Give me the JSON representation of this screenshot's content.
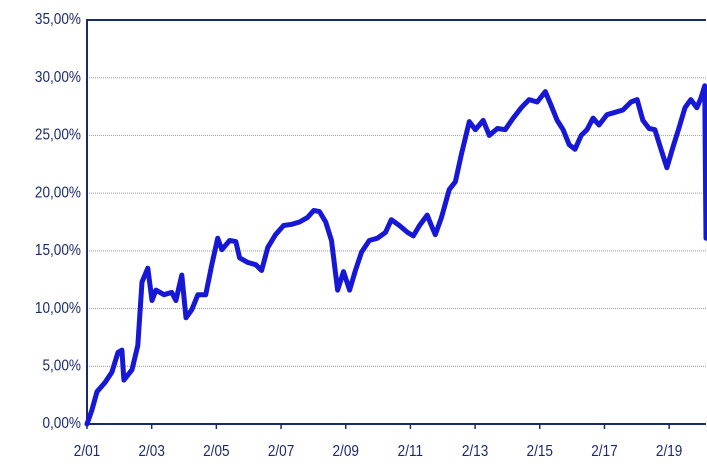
{
  "chart_data": {
    "type": "line",
    "x": [
      2001.0,
      2001.15,
      2001.31,
      2001.56,
      2001.77,
      2001.96,
      2002.08,
      2002.14,
      2002.39,
      2002.57,
      2002.7,
      2002.88,
      2003.01,
      2003.13,
      2003.38,
      2003.62,
      2003.75,
      2003.93,
      2004.06,
      2004.24,
      2004.43,
      2004.67,
      2004.86,
      2005.04,
      2005.17,
      2005.41,
      2005.6,
      2005.72,
      2005.97,
      2006.22,
      2006.4,
      2006.59,
      2006.83,
      2007.08,
      2007.33,
      2007.57,
      2007.82,
      2008.01,
      2008.19,
      2008.38,
      2008.56,
      2008.75,
      2008.93,
      2009.12,
      2009.3,
      2009.49,
      2009.73,
      2009.98,
      2010.23,
      2010.41,
      2010.66,
      2010.91,
      2011.09,
      2011.28,
      2011.52,
      2011.65,
      2011.77,
      2011.96,
      2012.2,
      2012.39,
      2012.57,
      2012.82,
      2013.01,
      2013.25,
      2013.44,
      2013.69,
      2013.93,
      2014.18,
      2014.43,
      2014.67,
      2014.92,
      2015.17,
      2015.35,
      2015.54,
      2015.72,
      2015.91,
      2016.09,
      2016.28,
      2016.46,
      2016.65,
      2016.83,
      2017.08,
      2017.33,
      2017.57,
      2017.82,
      2018.01,
      2018.19,
      2018.38,
      2018.56,
      2018.75,
      2018.93,
      2019.12,
      2019.3,
      2019.49,
      2019.67,
      2019.86,
      2019.98,
      2020.1,
      2020.14
    ],
    "values": [
      0,
      1.2,
      2.8,
      3.6,
      4.5,
      6.2,
      6.4,
      3.8,
      4.7,
      6.8,
      12.3,
      13.5,
      10.7,
      11.6,
      11.2,
      11.4,
      10.7,
      12.9,
      9.2,
      9.9,
      11.2,
      11.2,
      13.8,
      16.1,
      15.1,
      15.9,
      15.8,
      14.4,
      14.0,
      13.8,
      13.3,
      15.3,
      16.4,
      17.2,
      17.3,
      17.5,
      17.9,
      18.5,
      18.4,
      17.5,
      15.9,
      11.6,
      13.2,
      11.6,
      13.3,
      14.9,
      15.9,
      16.1,
      16.6,
      17.7,
      17.2,
      16.6,
      16.3,
      17.2,
      18.1,
      17.2,
      16.4,
      17.9,
      20.3,
      21.0,
      23.3,
      26.2,
      25.5,
      26.3,
      25.0,
      25.6,
      25.5,
      26.5,
      27.4,
      28.1,
      27.9,
      28.8,
      27.6,
      26.3,
      25.5,
      24.2,
      23.8,
      25.0,
      25.5,
      26.5,
      25.9,
      26.8,
      27.0,
      27.2,
      27.9,
      28.1,
      26.3,
      25.6,
      25.5,
      23.8,
      22.2,
      24.0,
      25.6,
      27.4,
      28.1,
      27.4,
      28.2,
      29.3,
      16.1
    ],
    "color": "#1717d6",
    "xlim": [
      2001,
      2020.14
    ],
    "xticks": [
      {
        "value": 2001,
        "label": "2/01"
      },
      {
        "value": 2003,
        "label": "2/03"
      },
      {
        "value": 2005,
        "label": "2/05"
      },
      {
        "value": 2007,
        "label": "2/07"
      },
      {
        "value": 2009,
        "label": "2/09"
      },
      {
        "value": 2011,
        "label": "2/11"
      },
      {
        "value": 2013,
        "label": "2/13"
      },
      {
        "value": 2015,
        "label": "2/15"
      },
      {
        "value": 2017,
        "label": "2/17"
      },
      {
        "value": 2019,
        "label": "2/19"
      }
    ],
    "ylim": [
      0,
      35
    ],
    "yticks": [
      {
        "value": 0,
        "label": "0,00%"
      },
      {
        "value": 5,
        "label": "5,00%"
      },
      {
        "value": 10,
        "label": "10,00%"
      },
      {
        "value": 15,
        "label": "15,00%"
      },
      {
        "value": 20,
        "label": "20,00%"
      },
      {
        "value": 25,
        "label": "25,00%"
      },
      {
        "value": 30,
        "label": "30,00%"
      },
      {
        "value": 35,
        "label": "35,00%"
      }
    ],
    "grid": true
  }
}
